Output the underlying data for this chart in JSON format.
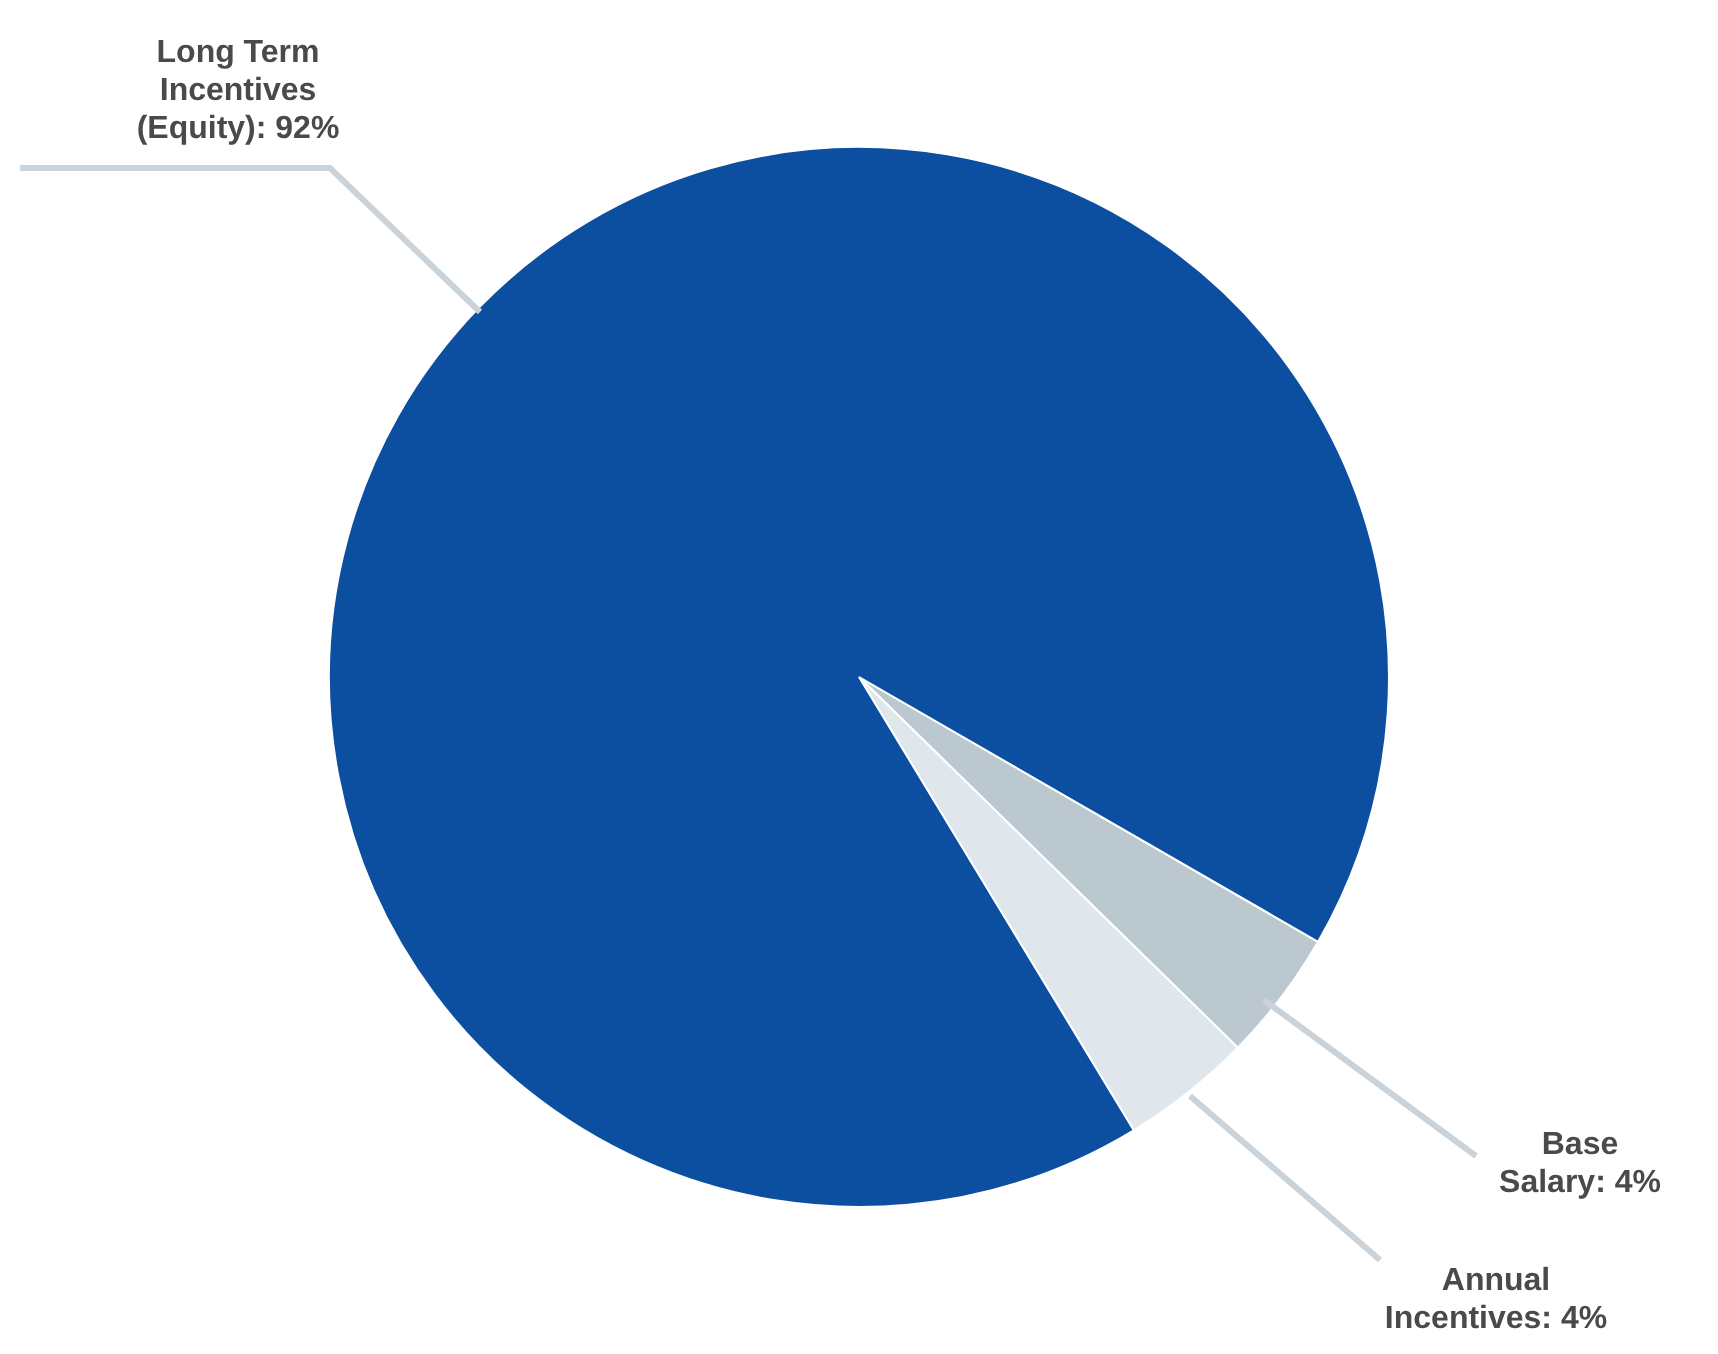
{
  "chart_data": {
    "type": "pie",
    "categories": [
      "Base Salary",
      "Annual Incentives",
      "Long Term Incentives (Equity)"
    ],
    "values": [
      4,
      4,
      92
    ],
    "colors": [
      "#bcc8d0",
      "#e0e7ec",
      "#0c4fa0"
    ],
    "value_labels": [
      "4%",
      "4%",
      "92%"
    ]
  }
}
